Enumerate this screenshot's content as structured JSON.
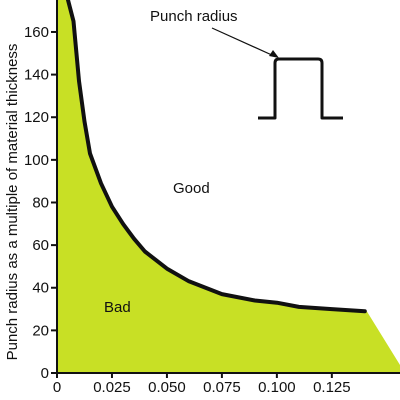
{
  "chart_data": {
    "type": "area",
    "title": "",
    "xlabel": "",
    "ylabel": "Punch radius as a multiple of material thickness",
    "xlim": [
      0,
      0.156
    ],
    "ylim": [
      0,
      175
    ],
    "x_ticks": [
      0,
      0.025,
      0.05,
      0.075,
      0.1,
      0.125
    ],
    "x_tick_labels": [
      "0",
      "0.025",
      "0.050",
      "0.075",
      "0.100",
      "0.125"
    ],
    "y_ticks": [
      0,
      20,
      40,
      60,
      80,
      100,
      120,
      140,
      160
    ],
    "y_tick_labels": [
      "0",
      "20",
      "40",
      "60",
      "80",
      "100",
      "120",
      "140",
      "160"
    ],
    "grid": false,
    "fill_color": "#c8e025",
    "curve_color": "#111111",
    "series": [
      {
        "x": [
          0.005,
          0.0075,
          0.01,
          0.0125,
          0.015,
          0.02,
          0.025,
          0.03,
          0.035,
          0.04,
          0.05,
          0.06,
          0.075,
          0.09,
          0.1,
          0.11,
          0.125,
          0.14
        ],
        "values": [
          175,
          165,
          137,
          118,
          103,
          89,
          78,
          70,
          63,
          57,
          49,
          43,
          37,
          34,
          33,
          31,
          30,
          29
        ]
      }
    ],
    "region_labels": {
      "bad": "Bad",
      "good": "Good"
    },
    "annotation": "Punch radius"
  }
}
